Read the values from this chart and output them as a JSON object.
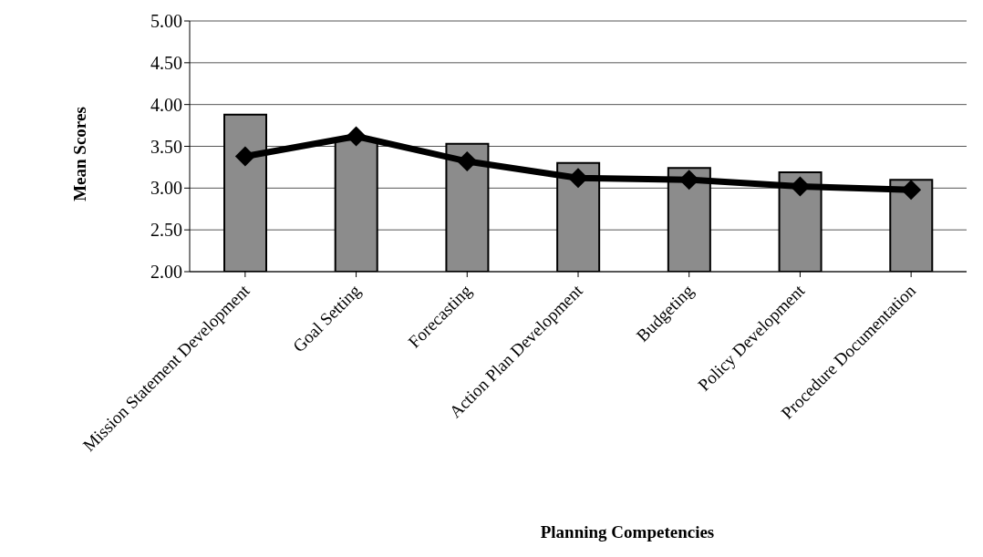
{
  "chart_data": {
    "type": "bar",
    "xlabel": "Planning Competencies",
    "ylabel": "Mean Scores",
    "categories": [
      "Mission Statement Development",
      "Goal Setting",
      "Forecasting",
      "Action Plan Development",
      "Budgeting",
      "Policy Development",
      "Procedure Documentation"
    ],
    "series": [
      {
        "color": "#8c8c8c",
        "values": [
          3.88,
          3.58,
          3.53,
          3.3,
          3.24,
          3.19,
          3.1
        ]
      },
      {
        "type": "line",
        "color": "#000000",
        "marker": "diamond",
        "line_style": "solid",
        "values": [
          3.38,
          3.62,
          3.32,
          3.12,
          3.1,
          3.02,
          2.98
        ]
      }
    ],
    "ylim": [
      2,
      5
    ],
    "yticks": [
      {
        "value": 2,
        "label": "2.00"
      },
      {
        "value": 2.5,
        "label": "2.50"
      },
      {
        "value": 3,
        "label": "3.00"
      },
      {
        "value": 3.5,
        "label": "3.50"
      },
      {
        "value": 4,
        "label": "4.00"
      },
      {
        "value": 4.5,
        "label": "4.50"
      },
      {
        "value": 5,
        "label": "5.00"
      }
    ],
    "grid": "y",
    "legend": false
  }
}
